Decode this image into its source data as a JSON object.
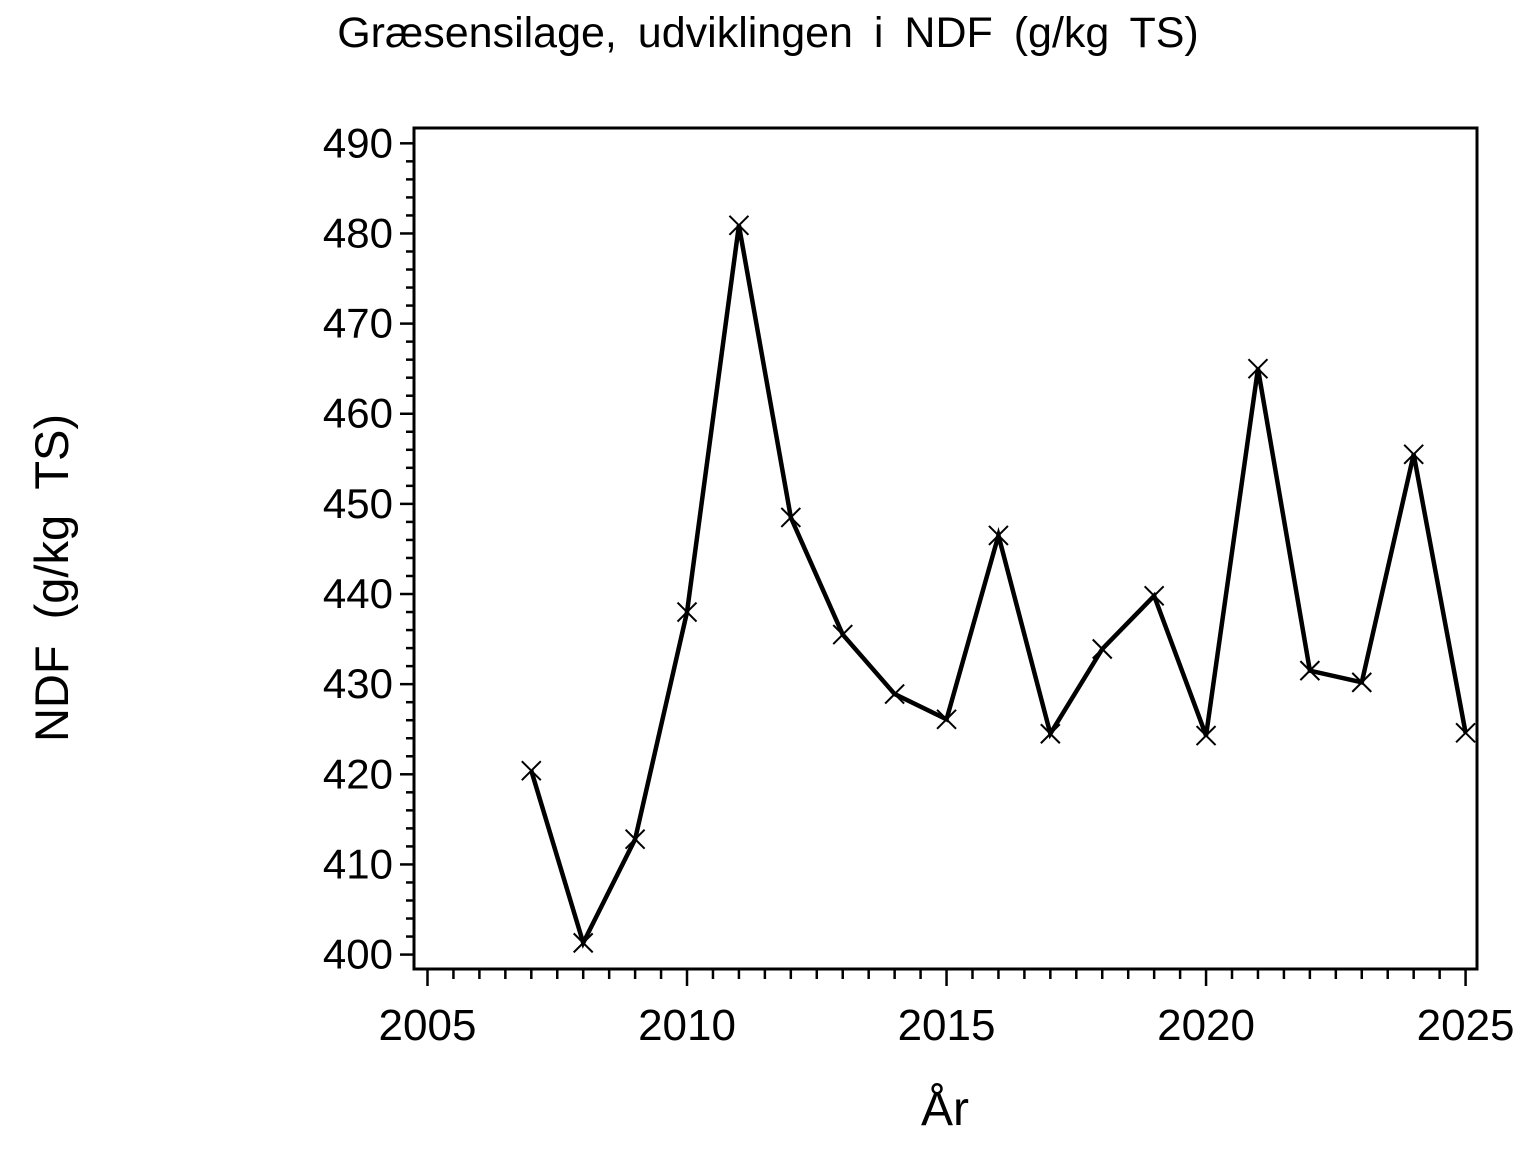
{
  "chart_data": {
    "type": "line",
    "title": "Græsensilage, udviklingen i NDF (g/kg TS)",
    "xlabel": "År",
    "ylabel": "NDF (g/kg TS)",
    "x": [
      2007,
      2008,
      2009,
      2010,
      2011,
      2012,
      2013,
      2014,
      2015,
      2016,
      2017,
      2018,
      2019,
      2020,
      2021,
      2022,
      2023,
      2024,
      2025
    ],
    "values": [
      420.4,
      401.3,
      412.8,
      438.0,
      480.9,
      448.5,
      435.5,
      428.9,
      426.1,
      446.5,
      424.5,
      433.9,
      439.8,
      424.3,
      465.0,
      431.5,
      430.2,
      455.5,
      424.6
    ],
    "marker": "x",
    "line_color": "#000000",
    "marker_color": "#000000",
    "background_color": "#ffffff",
    "xlim": [
      2004.74,
      2025.22
    ],
    "ylim": [
      398.4,
      491.7
    ],
    "x_ticks_major": [
      2005,
      2010,
      2015,
      2020,
      2025
    ],
    "x_tick_labels": [
      "2005",
      "2010",
      "2015",
      "2020",
      "2025"
    ],
    "x_minor_step": 0.5,
    "y_ticks_major": [
      400,
      410,
      420,
      430,
      440,
      450,
      460,
      470,
      480,
      490
    ],
    "y_tick_labels": [
      "400",
      "410",
      "420",
      "430",
      "440",
      "450",
      "460",
      "470",
      "480",
      "490"
    ],
    "y_minor_step": 2,
    "grid": false,
    "legend": "none"
  }
}
